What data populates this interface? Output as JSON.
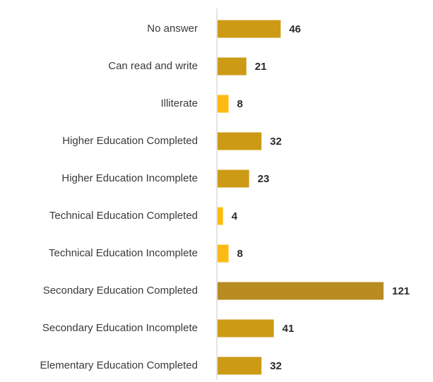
{
  "chart_data": {
    "type": "bar",
    "orientation": "horizontal",
    "categories": [
      "No answer",
      "Can read and write",
      "Illiterate",
      "Higher Education Completed",
      "Higher Education Incomplete",
      "Technical Education Completed",
      "Technical Education Incomplete",
      "Secondary Education Completed",
      "Secondary Education Incomplete",
      "Elementary Education Completed"
    ],
    "values": [
      46,
      21,
      8,
      32,
      23,
      4,
      8,
      121,
      41,
      32
    ],
    "bar_colors": [
      "#cc9a14",
      "#cc9a14",
      "#fbbb14",
      "#cc9a14",
      "#cc9a14",
      "#fbbb14",
      "#fbbb14",
      "#b88c20",
      "#cc9a14",
      "#cc9a14"
    ],
    "xlim": [
      0,
      121
    ],
    "axis_color": "#c8c8c8",
    "grid": false,
    "legend": "none",
    "title": "",
    "xlabel": "",
    "ylabel": ""
  }
}
